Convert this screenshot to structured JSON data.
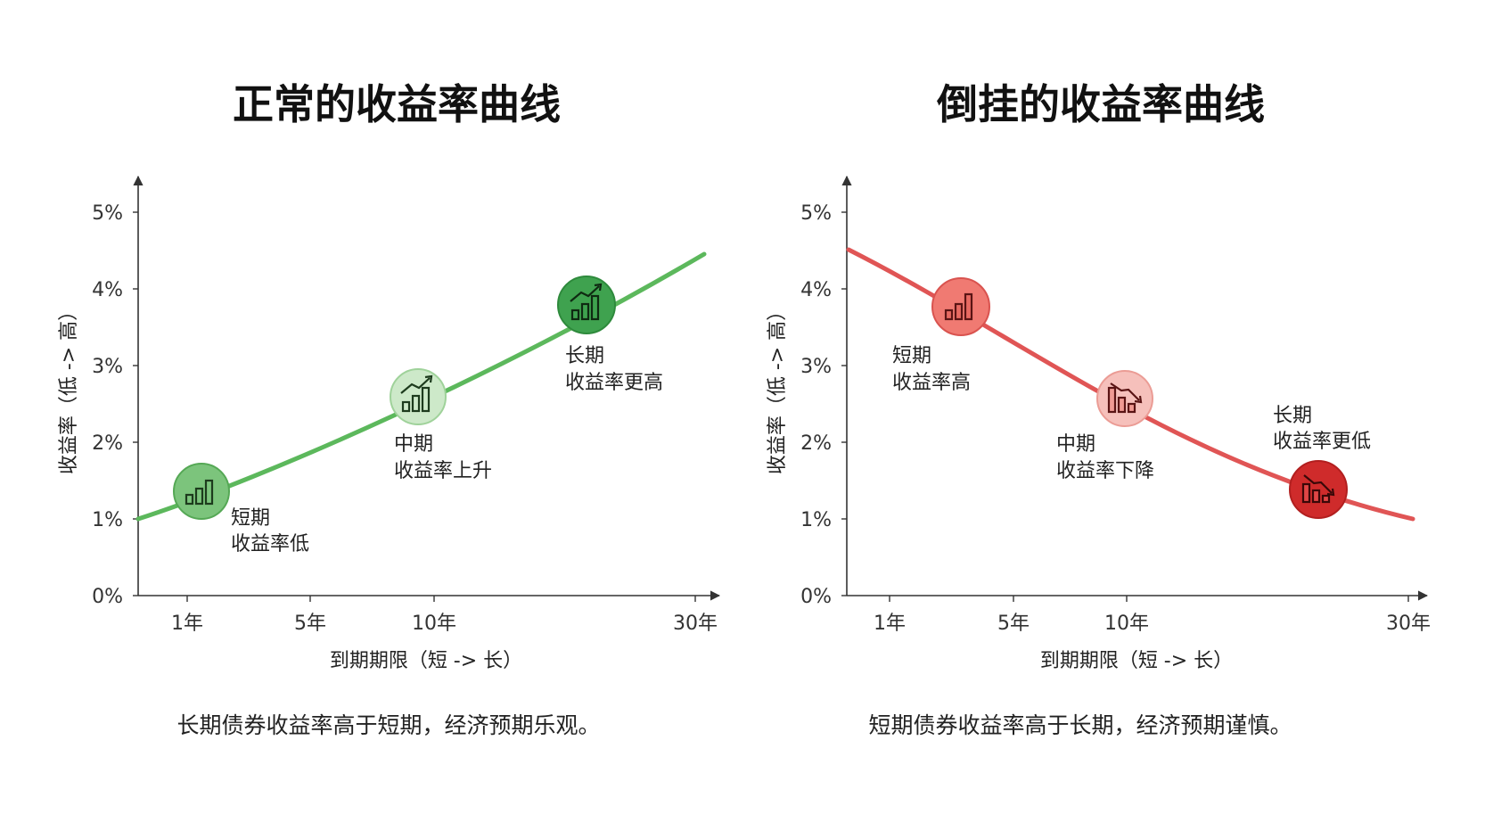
{
  "charts": [
    {
      "title": "正常的收益率曲线",
      "ylabel": "收益率（低 -> 高）",
      "xlabel": "到期期限（短 -> 长）",
      "caption": "长期债券收益率高于短期，经济预期乐观。"
    },
    {
      "title": "倒挂的收益率曲线",
      "ylabel": "收益率（低 -> 高）",
      "xlabel": "到期期限（短 -> 长）",
      "caption": "短期债券收益率高于长期，经济预期谨慎。"
    }
  ],
  "chart_data": [
    {
      "type": "line",
      "title": "正常的收益率曲线",
      "xlabel": "到期期限（短 -> 长）",
      "ylabel": "收益率（低 -> 高）",
      "y_ticks": [
        "0%",
        "1%",
        "2%",
        "3%",
        "4%",
        "5%"
      ],
      "x_ticks": [
        "1年",
        "5年",
        "10年",
        "30年"
      ],
      "ylim": [
        0,
        5
      ],
      "grid": false,
      "color": "#5cb85c",
      "series": [
        {
          "x": [
            "0.6年",
            "1年",
            "5年",
            "10年",
            "30年"
          ],
          "y": [
            1.0,
            1.3,
            1.9,
            2.7,
            4.45
          ]
        }
      ],
      "markers": [
        {
          "x": "1年",
          "y": 1.35,
          "fill": "#7cc47c",
          "icon": "bar-chart-icon",
          "lines": [
            "短期",
            "收益率低"
          ]
        },
        {
          "x": "10年",
          "y": 2.6,
          "fill": "#cde9c9",
          "icon": "bar-chart-up-icon",
          "lines": [
            "中期",
            "收益率上升"
          ]
        },
        {
          "x": "30年",
          "y": 3.75,
          "fill": "#3fa24f",
          "icon": "bar-chart-up-icon",
          "lines": [
            "长期",
            "收益率更高"
          ]
        }
      ]
    },
    {
      "type": "line",
      "title": "倒挂的收益率曲线",
      "xlabel": "到期期限（短 -> 长）",
      "ylabel": "收益率（低 -> 高）",
      "y_ticks": [
        "0%",
        "1%",
        "2%",
        "3%",
        "4%",
        "5%"
      ],
      "x_ticks": [
        "1年",
        "5年",
        "10年",
        "30年"
      ],
      "ylim": [
        0,
        5
      ],
      "grid": false,
      "color": "#e05555",
      "series": [
        {
          "x": [
            "0年",
            "1年",
            "5年",
            "10年",
            "30年"
          ],
          "y": [
            4.5,
            3.75,
            2.6,
            1.85,
            1.0
          ]
        }
      ],
      "markers": [
        {
          "x": "1年",
          "y": 3.75,
          "fill": "#f07a72",
          "icon": "bar-chart-icon",
          "lines": [
            "短期",
            "收益率高"
          ]
        },
        {
          "x": "10年",
          "y": 2.55,
          "fill": "#f6c0bb",
          "icon": "bar-chart-down-icon",
          "lines": [
            "中期",
            "收益率下降"
          ]
        },
        {
          "x": "30年",
          "y": 1.35,
          "fill": "#cf2b2b",
          "icon": "bar-chart-down-icon",
          "lines": [
            "长期",
            "收益率更低"
          ]
        }
      ]
    }
  ]
}
